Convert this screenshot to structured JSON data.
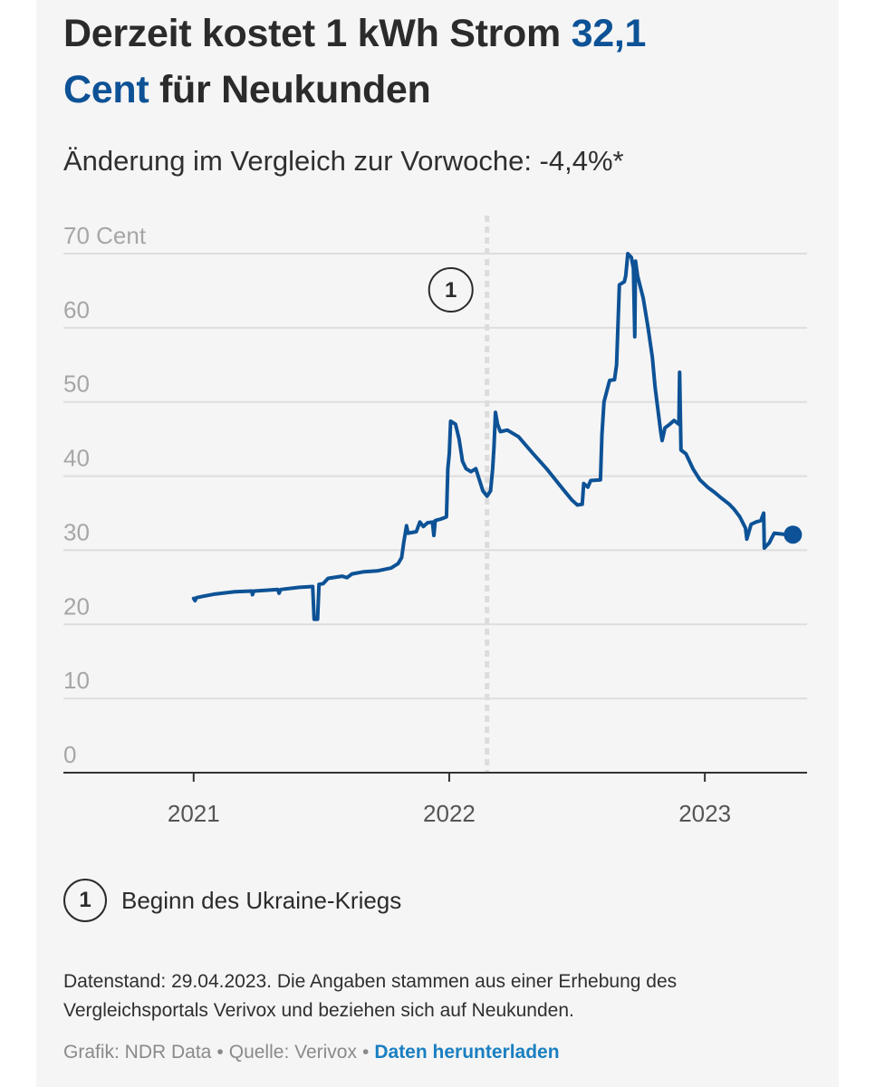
{
  "headline": {
    "part1": "Derzeit kostet 1 kWh Strom ",
    "value": "32,1",
    "unit": "Cent",
    "part2": " für Neukunden"
  },
  "subheadline": "Änderung im Vergleich zur Vorwoche: -4,4%*",
  "annotations": [
    {
      "number": "1",
      "label": "Beginn des Ukraine-Kriegs"
    }
  ],
  "footnote": "Datenstand: 29.04.2023. Die Angaben stammen aus einer Erhebung des Vergleichsportals Verivox und beziehen sich auf Neukunden.",
  "credits": {
    "grafik": "Grafik: NDR Data",
    "separator": "•",
    "quelle": "Quelle: Verivox",
    "download_label": "Daten herunterladen"
  },
  "colors": {
    "line": "#0d5296",
    "accent": "#0d5296",
    "link": "#1a7fc1",
    "grid": "#dedede",
    "axis": "#333333"
  },
  "chart_data": {
    "type": "line",
    "title": "",
    "xlabel": "",
    "ylabel": "",
    "y_unit_label": "70 Cent",
    "ylim": [
      0,
      70
    ],
    "y_ticks": [
      {
        "value": 70,
        "label": "70 Cent"
      },
      {
        "value": 60,
        "label": "60"
      },
      {
        "value": 50,
        "label": "50"
      },
      {
        "value": 40,
        "label": "40"
      },
      {
        "value": 30,
        "label": "30"
      },
      {
        "value": 20,
        "label": "20"
      },
      {
        "value": 10,
        "label": "10"
      },
      {
        "value": 0,
        "label": "0"
      }
    ],
    "x_ticks": [
      {
        "value": "2021-01-01",
        "label": "2021"
      },
      {
        "value": "2022-01-01",
        "label": "2022"
      },
      {
        "value": "2023-01-01",
        "label": "2023"
      }
    ],
    "xlim": [
      "2020-06-29",
      "2023-05-27"
    ],
    "grid": true,
    "marker_lines": [
      {
        "date": "2022-02-24",
        "number": "1"
      }
    ],
    "series": [
      {
        "end_marker": true,
        "points": [
          [
            "2021-01-01",
            23.5
          ],
          [
            "2021-01-03",
            23.2
          ],
          [
            "2021-01-05",
            23.6
          ],
          [
            "2021-01-15",
            23.8
          ],
          [
            "2021-02-01",
            24.1
          ],
          [
            "2021-03-01",
            24.4
          ],
          [
            "2021-03-25",
            24.5
          ],
          [
            "2021-03-26",
            24.0
          ],
          [
            "2021-03-28",
            24.5
          ],
          [
            "2021-04-15",
            24.6
          ],
          [
            "2021-05-01",
            24.7
          ],
          [
            "2021-05-03",
            24.2
          ],
          [
            "2021-05-05",
            24.7
          ],
          [
            "2021-06-01",
            25.0
          ],
          [
            "2021-06-20",
            25.1
          ],
          [
            "2021-06-22",
            20.7
          ],
          [
            "2021-06-27",
            20.7
          ],
          [
            "2021-06-29",
            25.4
          ],
          [
            "2021-07-05",
            25.5
          ],
          [
            "2021-07-12",
            26.2
          ],
          [
            "2021-08-01",
            26.5
          ],
          [
            "2021-08-08",
            26.3
          ],
          [
            "2021-08-15",
            26.8
          ],
          [
            "2021-09-01",
            27.1
          ],
          [
            "2021-09-20",
            27.2
          ],
          [
            "2021-10-10",
            27.6
          ],
          [
            "2021-10-20",
            28.2
          ],
          [
            "2021-10-25",
            29.0
          ],
          [
            "2021-10-28",
            31.0
          ],
          [
            "2021-11-01",
            33.3
          ],
          [
            "2021-11-03",
            32.3
          ],
          [
            "2021-11-15",
            32.5
          ],
          [
            "2021-11-20",
            33.8
          ],
          [
            "2021-11-25",
            33.2
          ],
          [
            "2021-12-01",
            33.7
          ],
          [
            "2021-12-08",
            33.8
          ],
          [
            "2021-12-10",
            32.0
          ],
          [
            "2021-12-12",
            34.0
          ],
          [
            "2021-12-20",
            34.2
          ],
          [
            "2021-12-28",
            34.5
          ],
          [
            "2021-12-30",
            41.0
          ],
          [
            "2022-01-01",
            43.0
          ],
          [
            "2022-01-03",
            47.4
          ],
          [
            "2022-01-10",
            47.0
          ],
          [
            "2022-01-15",
            45.0
          ],
          [
            "2022-01-20",
            42.0
          ],
          [
            "2022-01-25",
            41.0
          ],
          [
            "2022-02-01",
            40.6
          ],
          [
            "2022-02-08",
            41.0
          ],
          [
            "2022-02-12",
            39.8
          ],
          [
            "2022-02-18",
            38.0
          ],
          [
            "2022-02-24",
            37.3
          ],
          [
            "2022-03-01",
            38.0
          ],
          [
            "2022-03-04",
            41.0
          ],
          [
            "2022-03-06",
            44.0
          ],
          [
            "2022-03-08",
            48.6
          ],
          [
            "2022-03-11",
            47.0
          ],
          [
            "2022-03-15",
            46.0
          ],
          [
            "2022-03-25",
            46.2
          ],
          [
            "2022-04-10",
            45.3
          ],
          [
            "2022-05-01",
            43.0
          ],
          [
            "2022-05-20",
            41.0
          ],
          [
            "2022-06-10",
            38.5
          ],
          [
            "2022-06-25",
            36.8
          ],
          [
            "2022-07-03",
            36.1
          ],
          [
            "2022-07-10",
            36.2
          ],
          [
            "2022-07-12",
            39.0
          ],
          [
            "2022-07-18",
            38.5
          ],
          [
            "2022-07-22",
            39.4
          ],
          [
            "2022-08-05",
            39.5
          ],
          [
            "2022-08-07",
            45.5
          ],
          [
            "2022-08-10",
            50.0
          ],
          [
            "2022-08-18",
            52.9
          ],
          [
            "2022-08-25",
            53.0
          ],
          [
            "2022-08-28",
            55.0
          ],
          [
            "2022-09-01",
            65.8
          ],
          [
            "2022-09-08",
            66.2
          ],
          [
            "2022-09-10",
            67.0
          ],
          [
            "2022-09-13",
            70.0
          ],
          [
            "2022-09-18",
            69.5
          ],
          [
            "2022-09-21",
            68.0
          ],
          [
            "2022-09-23",
            58.8
          ],
          [
            "2022-09-24",
            69.0
          ],
          [
            "2022-09-27",
            67.0
          ],
          [
            "2022-10-05",
            64.0
          ],
          [
            "2022-10-12",
            60.0
          ],
          [
            "2022-10-18",
            56.0
          ],
          [
            "2022-10-22",
            52.0
          ],
          [
            "2022-10-30",
            46.0
          ],
          [
            "2022-11-01",
            44.8
          ],
          [
            "2022-11-05",
            46.5
          ],
          [
            "2022-11-12",
            47.0
          ],
          [
            "2022-11-18",
            47.5
          ],
          [
            "2022-11-25",
            47.0
          ],
          [
            "2022-11-26",
            54.0
          ],
          [
            "2022-11-28",
            43.5
          ],
          [
            "2022-12-05",
            43.0
          ],
          [
            "2022-12-15",
            41.0
          ],
          [
            "2022-12-25",
            39.5
          ],
          [
            "2023-01-05",
            38.5
          ],
          [
            "2023-01-15",
            37.8
          ],
          [
            "2023-01-25",
            37.0
          ],
          [
            "2023-02-05",
            36.2
          ],
          [
            "2023-02-12",
            35.5
          ],
          [
            "2023-02-20",
            34.5
          ],
          [
            "2023-02-28",
            33.0
          ],
          [
            "2023-03-02",
            31.5
          ],
          [
            "2023-03-08",
            33.5
          ],
          [
            "2023-03-15",
            33.8
          ],
          [
            "2023-03-22",
            34.0
          ],
          [
            "2023-03-26",
            35.0
          ],
          [
            "2023-03-27",
            30.3
          ],
          [
            "2023-04-03",
            31.0
          ],
          [
            "2023-04-10",
            32.3
          ],
          [
            "2023-04-29",
            32.1
          ]
        ]
      }
    ]
  }
}
